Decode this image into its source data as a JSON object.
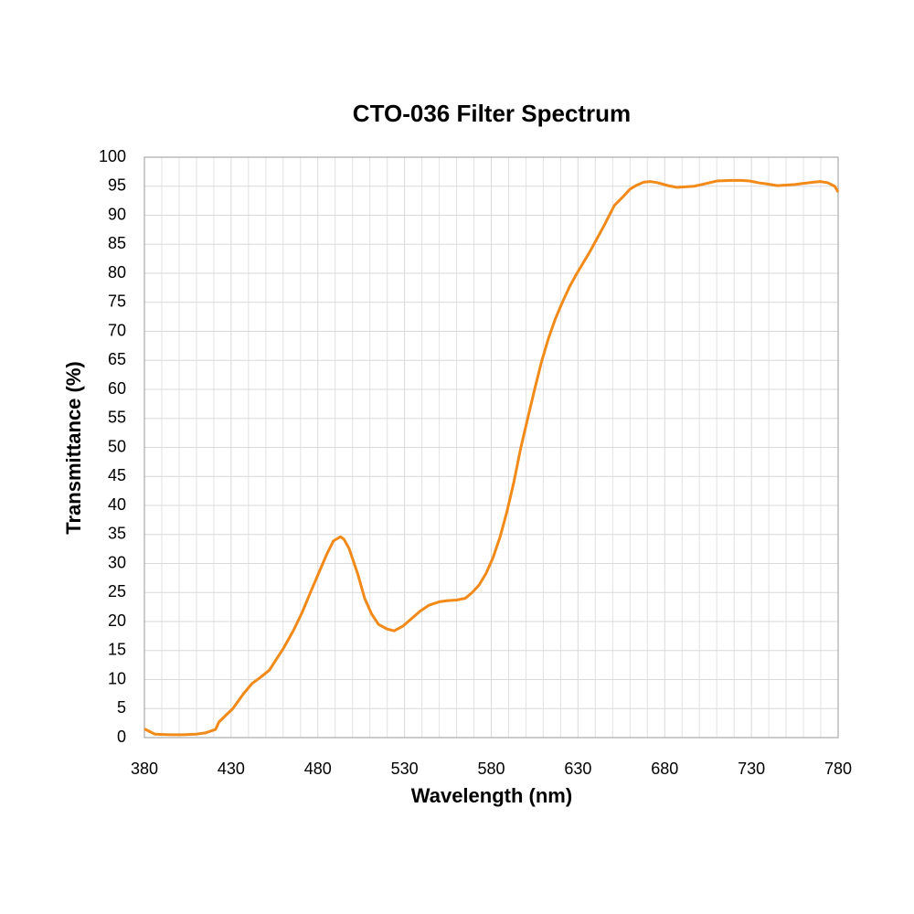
{
  "chart_data": {
    "type": "line",
    "title": "CTO-036 Filter Spectrum",
    "x_label": "Wavelength (nm)",
    "y_label": "Transmittance (%)",
    "x": [
      380,
      386,
      395,
      402,
      410,
      415,
      421,
      423,
      431,
      437,
      442,
      447,
      452,
      460,
      466,
      471,
      476,
      481,
      485,
      489,
      493,
      495,
      498,
      503,
      507,
      511,
      515,
      520,
      524,
      529,
      534,
      539,
      544,
      550,
      555,
      560,
      565,
      569,
      573,
      577,
      581,
      585,
      589,
      593,
      597,
      601,
      605,
      609,
      613,
      617,
      621,
      625,
      629,
      633,
      637,
      641,
      645,
      651,
      656,
      660,
      664,
      668,
      672,
      676,
      682,
      687,
      692,
      697,
      703,
      710,
      718,
      724,
      729,
      734,
      739,
      745,
      750,
      755,
      760,
      766,
      770,
      774,
      778,
      780
    ],
    "series": [
      {
        "name": "CTO-036",
        "color": "#f28a1a",
        "values": [
          1.5,
          0.6,
          0.5,
          0.5,
          0.6,
          0.8,
          1.4,
          2.7,
          5,
          7.5,
          9.3,
          10.4,
          11.6,
          15.3,
          18.5,
          21.6,
          25.2,
          28.7,
          31.5,
          33.9,
          34.6,
          34.2,
          32.6,
          28.2,
          24,
          21.3,
          19.5,
          18.7,
          18.4,
          19.2,
          20.5,
          21.8,
          22.8,
          23.4,
          23.6,
          23.7,
          24,
          25,
          26.3,
          28.3,
          31,
          34.5,
          38.9,
          44,
          49.9,
          55,
          60,
          64.8,
          68.8,
          72.2,
          75,
          77.6,
          79.8,
          81.8,
          83.8,
          86,
          88.2,
          91.7,
          93.2,
          94.5,
          95.2,
          95.7,
          95.8,
          95.6,
          95.1,
          94.8,
          94.9,
          95,
          95.4,
          95.9,
          96,
          96,
          95.9,
          95.6,
          95.4,
          95.1,
          95.2,
          95.3,
          95.5,
          95.7,
          95.8,
          95.6,
          95,
          94
        ]
      }
    ],
    "xlim": [
      380,
      780
    ],
    "xticks": [
      380,
      430,
      480,
      530,
      580,
      630,
      680,
      730,
      780
    ],
    "ylim": [
      0,
      100
    ],
    "yticks": [
      0,
      5,
      10,
      15,
      20,
      25,
      30,
      35,
      40,
      45,
      50,
      55,
      60,
      65,
      70,
      75,
      80,
      85,
      90,
      95,
      100
    ],
    "grid": true
  }
}
